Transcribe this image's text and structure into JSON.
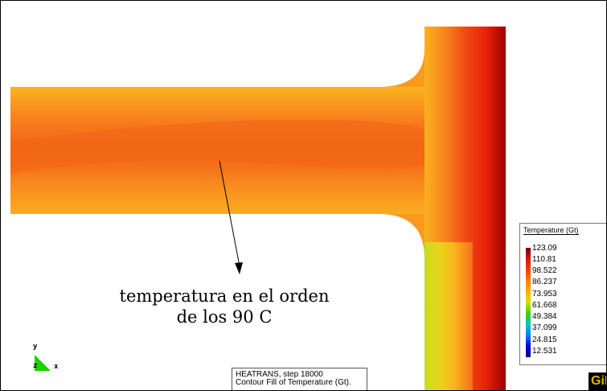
{
  "annotation": {
    "line1": "temperatura en el orden",
    "line2": "de los 90 C"
  },
  "legend": {
    "title": "Temperature (Gt)",
    "ticks": [
      "123.09",
      "110.81",
      "98.522",
      "86.237",
      "73.953",
      "61.668",
      "49.384",
      "37.099",
      "24.815",
      "12.531"
    ]
  },
  "info": {
    "line1": "HEATRANS, step 18000",
    "line2": "Contour Fill of Temperature (Gt)."
  },
  "axes": {
    "y": "y",
    "z": "z",
    "x": "x"
  },
  "logo": {
    "text": "GiD"
  },
  "colors": {
    "dark_red": "#a00000",
    "red": "#e8220a",
    "red_orange": "#f24d10",
    "orange": "#f7781c",
    "light_orange": "#f9981f",
    "amber": "#fbb420",
    "yellow": "#e6e01c",
    "yellow_green": "#b9e41e",
    "axis_green": "#1ed000"
  }
}
